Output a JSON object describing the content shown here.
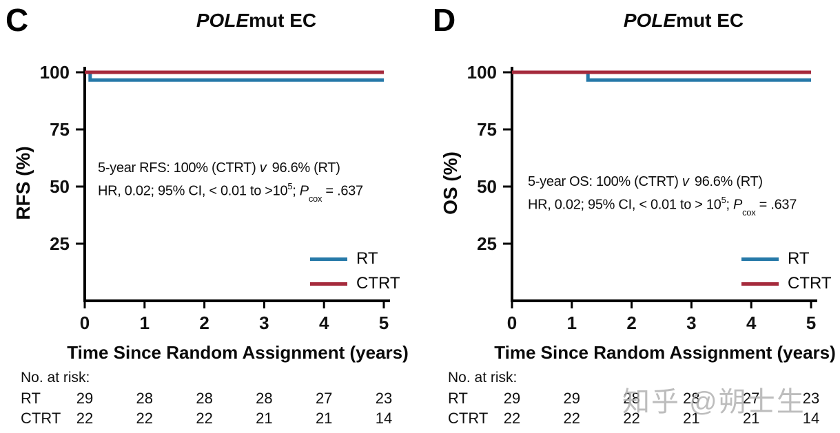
{
  "watermark": "知乎 @朔士生",
  "colors": {
    "rt_blue": "#2679a8",
    "ctrt_red": "#a52a3c",
    "axis_black": "#000000"
  },
  "chart_data": [
    {
      "type": "line",
      "panel_letter": "C",
      "title": {
        "italic": "POLE",
        "rest": "mut EC"
      },
      "xlabel": "Time Since Random Assignment (years)",
      "ylabel": "RFS (%)",
      "xlim": [
        0,
        5
      ],
      "ylim": [
        0,
        100
      ],
      "xticks": [
        "0",
        "1",
        "2",
        "3",
        "4",
        "5"
      ],
      "yticks": [
        "100",
        "75",
        "50",
        "25"
      ],
      "ytick_values": [
        100,
        75,
        50,
        25
      ],
      "grid": false,
      "legend_position": "lower right",
      "legend": [
        {
          "label": "RT",
          "color": "#2679a8"
        },
        {
          "label": "CTRT",
          "color": "#a52a3c"
        }
      ],
      "series": [
        {
          "name": "RT",
          "color": "#2679a8",
          "points": [
            [
              0,
              100
            ],
            [
              0.09,
              100
            ],
            [
              0.09,
              96.6
            ],
            [
              5,
              96.6
            ]
          ]
        },
        {
          "name": "CTRT",
          "color": "#a52a3c",
          "points": [
            [
              0,
              100
            ],
            [
              5,
              100
            ]
          ]
        }
      ],
      "annotation": {
        "line1": {
          "pre": "5-year RFS: 100% (CTRT) ",
          "italic": "v",
          "post": " 96.6% (RT)"
        },
        "line2": {
          "pre": "HR, 0.02; 95% CI, < 0.01 to >10",
          "sup": "5",
          "mid": "; ",
          "p_italic": "P",
          "sub": "cox",
          "post": " = .637"
        }
      },
      "risk_table": {
        "heading": "No. at risk:",
        "rows": [
          {
            "name": "RT",
            "counts": [
              "29",
              "28",
              "28",
              "28",
              "27",
              "23"
            ]
          },
          {
            "name": "CTRT",
            "counts": [
              "22",
              "22",
              "22",
              "21",
              "21",
              "14"
            ]
          }
        ]
      }
    },
    {
      "type": "line",
      "panel_letter": "D",
      "title": {
        "italic": "POLE",
        "rest": "mut EC"
      },
      "xlabel": "Time Since Random Assignment (years)",
      "ylabel": "OS (%)",
      "xlim": [
        0,
        5
      ],
      "ylim": [
        0,
        100
      ],
      "xticks": [
        "0",
        "1",
        "2",
        "3",
        "4",
        "5"
      ],
      "yticks": [
        "100",
        "75",
        "50",
        "25"
      ],
      "ytick_values": [
        100,
        75,
        50,
        25
      ],
      "grid": false,
      "legend_position": "lower right",
      "legend": [
        {
          "label": "RT",
          "color": "#2679a8"
        },
        {
          "label": "CTRT",
          "color": "#a52a3c"
        }
      ],
      "series": [
        {
          "name": "RT",
          "color": "#2679a8",
          "points": [
            [
              0,
              100
            ],
            [
              1.27,
              100
            ],
            [
              1.27,
              96.6
            ],
            [
              5,
              96.6
            ]
          ]
        },
        {
          "name": "CTRT",
          "color": "#a52a3c",
          "points": [
            [
              0,
              100
            ],
            [
              5,
              100
            ]
          ]
        }
      ],
      "annotation": {
        "line1": {
          "pre": "5-year OS: 100% (CTRT) ",
          "italic": "v",
          "post": " 96.6% (RT)"
        },
        "line2": {
          "pre": "HR, 0.02; 95% CI, < 0.01 to > 10",
          "sup": "5",
          "mid": "; ",
          "p_italic": "P",
          "sub": "cox",
          "post": " = .637"
        }
      },
      "risk_table": {
        "heading": "No. at risk:",
        "rows": [
          {
            "name": "RT",
            "counts": [
              "29",
              "29",
              "28",
              "28",
              "27",
              "23"
            ]
          },
          {
            "name": "CTRT",
            "counts": [
              "22",
              "22",
              "22",
              "21",
              "21",
              "14"
            ]
          }
        ]
      }
    }
  ]
}
